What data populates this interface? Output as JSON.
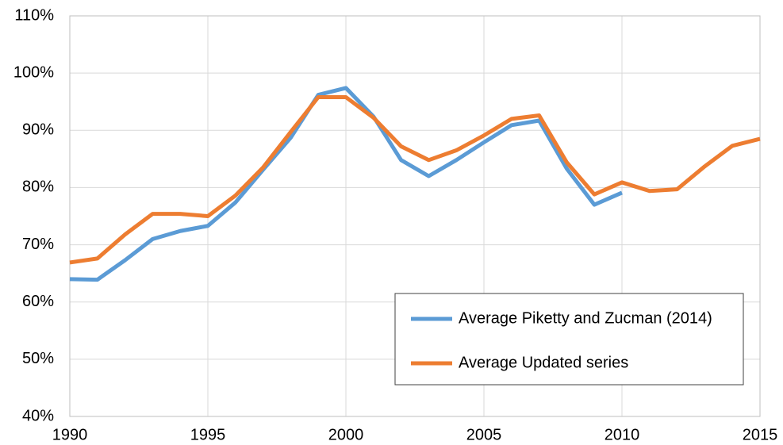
{
  "chart_data": {
    "type": "line",
    "x": [
      1990,
      1991,
      1992,
      1993,
      1994,
      1995,
      1996,
      1997,
      1998,
      1999,
      2000,
      2001,
      2002,
      2003,
      2004,
      2005,
      2006,
      2007,
      2008,
      2009,
      2010,
      2011,
      2012,
      2013,
      2014,
      2015
    ],
    "series": [
      {
        "name": "Average Piketty and Zucman (2014)",
        "color": "#5b9bd5",
        "values": [
          64,
          63.9,
          67.3,
          71,
          72.4,
          73.3,
          77.4,
          83.1,
          88.7,
          96.2,
          97.4,
          92.4,
          84.8,
          82,
          84.8,
          87.9,
          90.9,
          91.7,
          83.3,
          77,
          79.1,
          null,
          null,
          null,
          null,
          null
        ]
      },
      {
        "name": "Average Updated series",
        "color": "#ed7d31",
        "values": [
          66.9,
          67.6,
          71.8,
          75.4,
          75.4,
          75,
          78.6,
          83.5,
          89.7,
          95.8,
          95.8,
          92.2,
          87.2,
          84.8,
          86.5,
          89.1,
          92,
          92.6,
          84.4,
          78.8,
          80.9,
          79.4,
          79.7,
          83.7,
          87.3,
          88.5
        ]
      }
    ],
    "xlim": [
      1990,
      2015
    ],
    "xticks": [
      1990,
      1995,
      2000,
      2005,
      2010,
      2015
    ],
    "ylim": [
      40,
      110
    ],
    "yticks": [
      {
        "value": 40,
        "label": "40%"
      },
      {
        "value": 50,
        "label": "50%"
      },
      {
        "value": 60,
        "label": "60%"
      },
      {
        "value": 70,
        "label": "70%"
      },
      {
        "value": 80,
        "label": "80%"
      },
      {
        "value": 90,
        "label": "90%"
      },
      {
        "value": 100,
        "label": "100%"
      },
      {
        "value": 110,
        "label": "110%"
      }
    ],
    "grid": true,
    "legend": "lower right"
  }
}
